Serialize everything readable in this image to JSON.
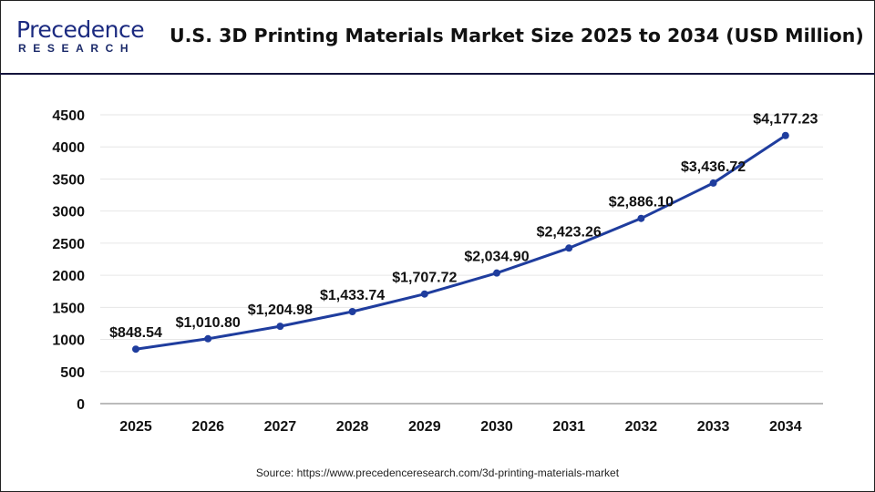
{
  "logo": {
    "line1": "Precedence",
    "line2": "RESEARCH"
  },
  "title": "U.S. 3D Printing Materials Market Size 2025 to 2034 (USD Million)",
  "source": "Source: https://www.precedenceresearch.com/3d-printing-materials-market",
  "colors": {
    "line": "#1f3d9e",
    "grid": "#e6e6e6",
    "axis": "#bbbbbb",
    "header_rule": "#14143c"
  },
  "chart_data": {
    "type": "line",
    "title": "U.S. 3D Printing Materials Market Size 2025 to 2034 (USD Million)",
    "xlabel": "",
    "ylabel": "",
    "categories": [
      "2025",
      "2026",
      "2027",
      "2028",
      "2029",
      "2030",
      "2031",
      "2032",
      "2033",
      "2034"
    ],
    "values": [
      848.54,
      1010.8,
      1204.98,
      1433.74,
      1707.72,
      2034.9,
      2423.26,
      2886.1,
      3436.72,
      4177.23
    ],
    "data_labels": [
      "$848.54",
      "$1,010.80",
      "$1,204.98",
      "$1,433.74",
      "$1,707.72",
      "$2,034.90",
      "$2,423.26",
      "$2,886.10",
      "$3,436.72",
      "$4,177.23"
    ],
    "ylim": [
      0,
      4500
    ],
    "yticks": [
      0,
      500,
      1000,
      1500,
      2000,
      2500,
      3000,
      3500,
      4000,
      4500
    ],
    "grid": true,
    "legend": "none"
  }
}
